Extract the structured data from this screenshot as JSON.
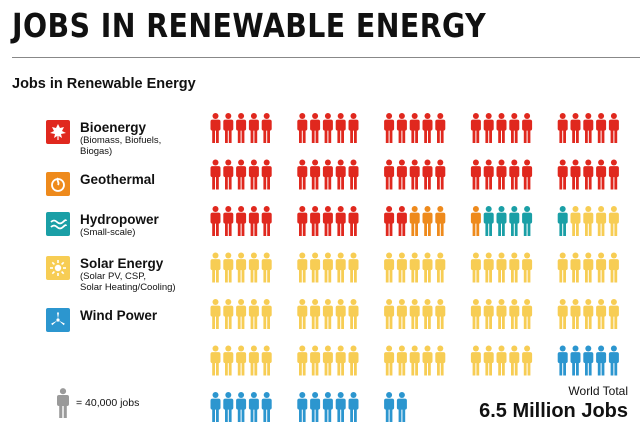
{
  "header": {
    "title": "JOBS IN RENEWABLE ENERGY",
    "subtitle": "Jobs in Renewable Energy"
  },
  "legend": [
    {
      "label": "Bioenergy",
      "sub": "(Biomass, Biofuels,\nBiogas)",
      "icon": "leaf-icon"
    },
    {
      "label": "Geothermal",
      "sub": "",
      "icon": "geothermal-icon"
    },
    {
      "label": "Hydropower",
      "sub": "(Small-scale)",
      "icon": "waves-icon"
    },
    {
      "label": "Solar Energy",
      "sub": "(Solar PV, CSP,\nSolar Heating/Cooling)",
      "icon": "sun-icon"
    },
    {
      "label": "Wind Power",
      "sub": "",
      "icon": "turbine-icon"
    }
  ],
  "scale_note": "= 40,000 jobs",
  "total": {
    "label": "World Total",
    "value": "6.5 Million Jobs"
  },
  "chart_data": {
    "type": "pictogram",
    "unit_jobs": 40000,
    "categories": [
      "Bioenergy",
      "Geothermal",
      "Hydropower",
      "Solar Energy",
      "Wind Power"
    ],
    "values": [
      62,
      4,
      5,
      74,
      17
    ],
    "colors": [
      "#e0281e",
      "#ee8a1c",
      "#1a9fa6",
      "#f7cd54",
      "#2c96cf"
    ],
    "unit_color": "#9a9a9a"
  }
}
